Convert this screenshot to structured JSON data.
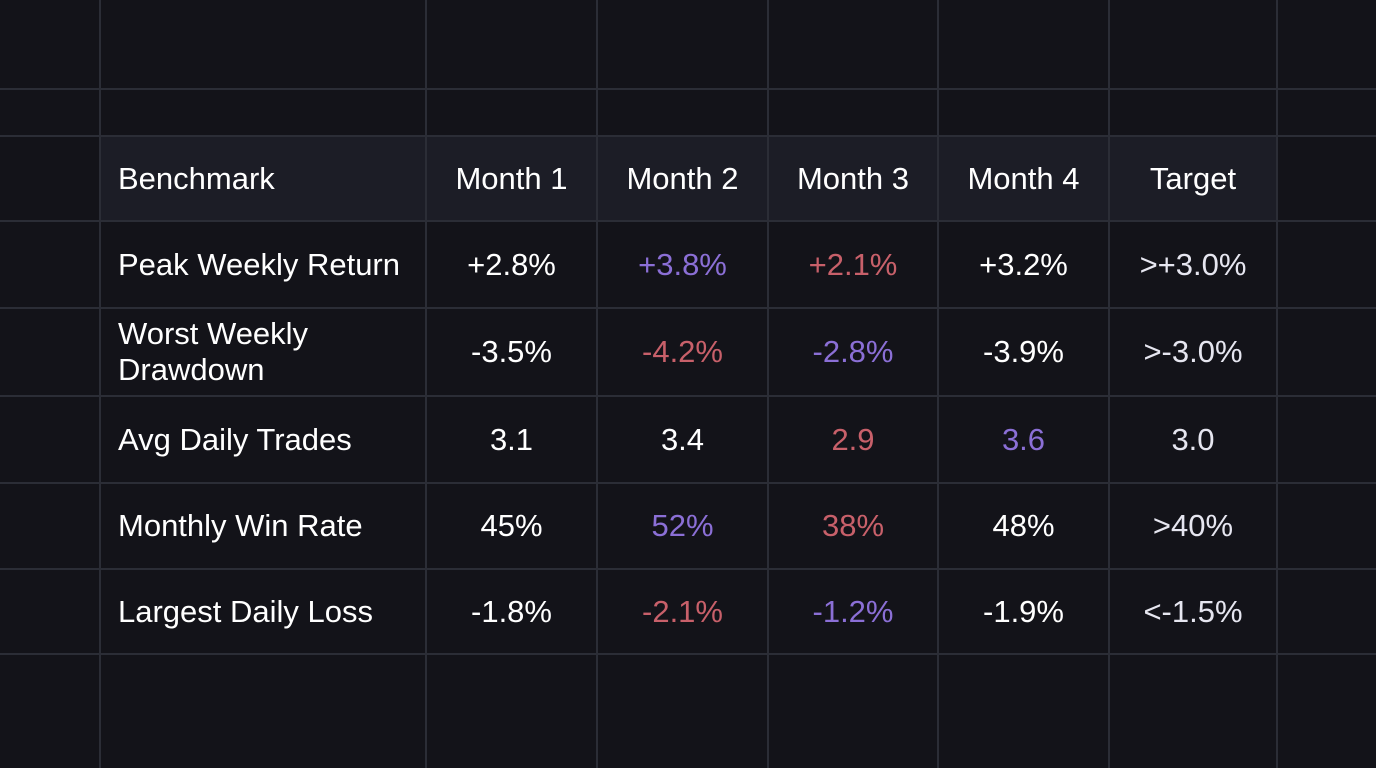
{
  "table": {
    "columns": [
      "Benchmark",
      "Month 1",
      "Month 2",
      "Month 3",
      "Month 4",
      "Target"
    ],
    "rows": [
      {
        "label": "Peak Weekly Return",
        "values": [
          "+2.8%",
          "+3.8%",
          "+2.1%",
          "+3.2%"
        ],
        "target": ">+3.0%",
        "highlight": [
          "none",
          "purple",
          "red",
          "none"
        ]
      },
      {
        "label": "Worst Weekly Drawdown",
        "values": [
          "-3.5%",
          "-4.2%",
          "-2.8%",
          "-3.9%"
        ],
        "target": ">-3.0%",
        "highlight": [
          "none",
          "red",
          "purple",
          "none"
        ]
      },
      {
        "label": "Avg Daily Trades",
        "values": [
          "3.1",
          "3.4",
          "2.9",
          "3.6"
        ],
        "target": "3.0",
        "highlight": [
          "none",
          "none",
          "red",
          "purple"
        ]
      },
      {
        "label": "Monthly Win Rate",
        "values": [
          "45%",
          "52%",
          "38%",
          "48%"
        ],
        "target": ">40%",
        "highlight": [
          "none",
          "purple",
          "red",
          "none"
        ]
      },
      {
        "label": "Largest Daily Loss",
        "values": [
          "-1.8%",
          "-2.1%",
          "-1.2%",
          "-1.9%"
        ],
        "target": "<-1.5%",
        "highlight": [
          "none",
          "red",
          "purple",
          "none"
        ]
      }
    ]
  },
  "chart_data": {
    "type": "table",
    "categories": [
      "Month 1",
      "Month 2",
      "Month 3",
      "Month 4",
      "Target"
    ],
    "series": [
      {
        "name": "Peak Weekly Return",
        "values": [
          "+2.8%",
          "+3.8%",
          "+2.1%",
          "+3.2%",
          ">+3.0%"
        ]
      },
      {
        "name": "Worst Weekly Drawdown",
        "values": [
          "-3.5%",
          "-4.2%",
          "-2.8%",
          "-3.9%",
          ">-3.0%"
        ]
      },
      {
        "name": "Avg Daily Trades",
        "values": [
          "3.1",
          "3.4",
          "2.9",
          "3.6",
          "3.0"
        ]
      },
      {
        "name": "Monthly Win Rate",
        "values": [
          "45%",
          "52%",
          "38%",
          "48%",
          ">40%"
        ]
      },
      {
        "name": "Largest Daily Loss",
        "values": [
          "-1.8%",
          "-2.1%",
          "-1.2%",
          "-1.9%",
          "<-1.5%"
        ]
      }
    ]
  },
  "colors": {
    "background": "#131319",
    "header_background": "#1c1d26",
    "grid": "#2b2d36",
    "text": "#ffffff",
    "target_text": "#e6e6f0",
    "purple": "#8b6fd6",
    "red": "#c8606a"
  }
}
